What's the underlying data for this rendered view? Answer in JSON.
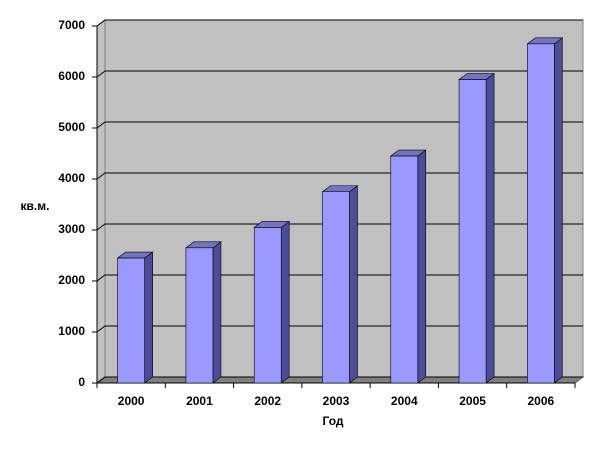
{
  "chart_data": {
    "type": "bar3d",
    "x_label": "Год",
    "y_label": "кв.м.",
    "categories": [
      "2000",
      "2001",
      "2002",
      "2003",
      "2004",
      "2005",
      "2006"
    ],
    "values": [
      2450,
      2650,
      3050,
      3750,
      4450,
      5950,
      6650
    ],
    "color": "#9999ff",
    "ylim": [
      0,
      7000
    ],
    "yticks": [
      0,
      1000,
      2000,
      3000,
      4000,
      5000,
      6000,
      7000
    ],
    "grid": true
  }
}
